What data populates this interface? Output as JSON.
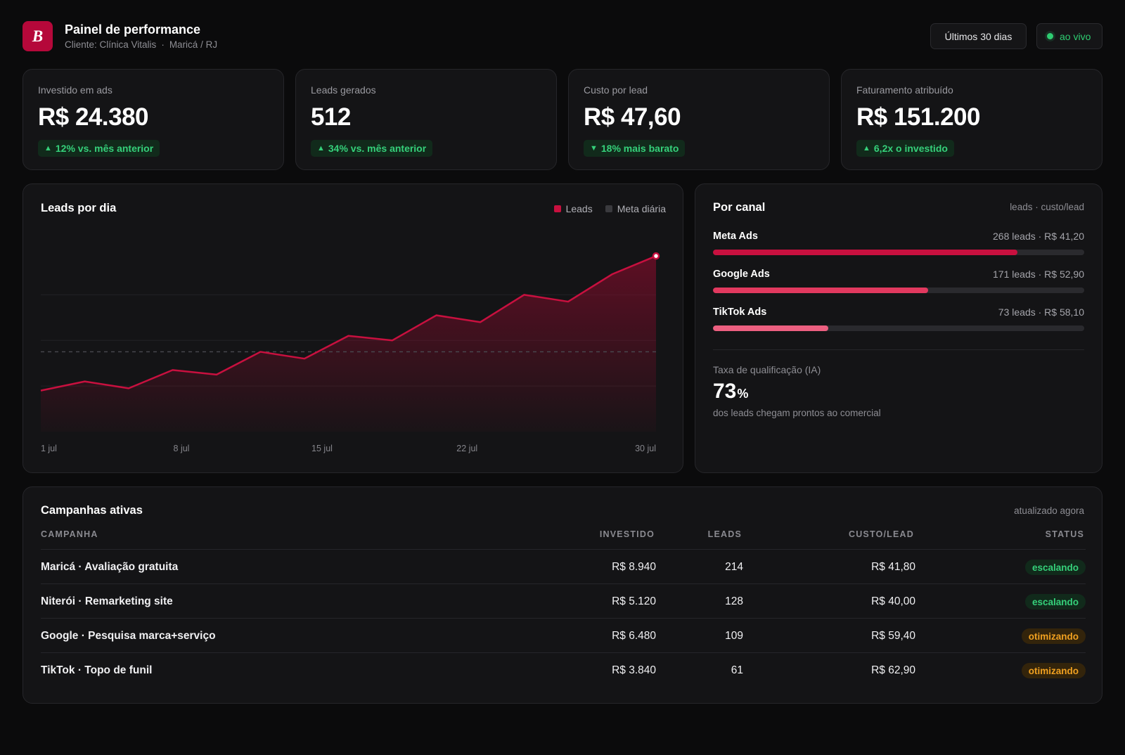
{
  "header": {
    "logo_letter": "B",
    "title": "Painel de performance",
    "client": "Cliente: Clínica Vitalis",
    "location": "Maricá / RJ",
    "range_label": "Últimos 30 dias",
    "live_label": "ao vivo"
  },
  "kpis": [
    {
      "label": "Investido em ads",
      "value": "R$ 24.380",
      "arrow": "▲",
      "badge": "12% vs. mês anterior"
    },
    {
      "label": "Leads gerados",
      "value": "512",
      "arrow": "▲",
      "badge": "34% vs. mês anterior"
    },
    {
      "label": "Custo por lead",
      "value": "R$ 47,60",
      "arrow": "▼",
      "badge": "18% mais barato"
    },
    {
      "label": "Faturamento atribuído",
      "value": "R$ 151.200",
      "arrow": "▲",
      "badge": "6,2x o investido"
    }
  ],
  "leads_chart": {
    "title": "Leads por dia",
    "legend_leads": "Leads",
    "legend_goal": "Meta diária"
  },
  "chart_data": {
    "type": "area",
    "x": [
      1,
      2,
      3,
      4,
      5,
      6,
      7,
      8,
      9,
      10,
      11,
      12,
      13,
      14,
      15
    ],
    "x_tick_labels": [
      "1 jul",
      "8 jul",
      "15 jul",
      "22 jul",
      "30 jul"
    ],
    "x_tick_positions": [
      1,
      4.2,
      7.4,
      10.7,
      15
    ],
    "series": [
      {
        "name": "Leads",
        "values": [
          9,
          11,
          9.5,
          13.5,
          12.5,
          17.5,
          16,
          21,
          20,
          25.5,
          24,
          30,
          28.5,
          34.5,
          38.5
        ],
        "color": "#c8103f"
      },
      {
        "name": "Meta diária",
        "values": [
          17.5,
          17.5,
          17.5,
          17.5,
          17.5,
          17.5,
          17.5,
          17.5,
          17.5,
          17.5,
          17.5,
          17.5,
          17.5,
          17.5,
          17.5
        ],
        "color": "#3a3a3e"
      }
    ],
    "ylim": [
      0,
      45
    ],
    "grid": true
  },
  "channels": {
    "title": "Por canal",
    "subtitle": "leads · custo/lead",
    "items": [
      {
        "name": "Meta Ads",
        "stat": "268 leads · R$ 41,20",
        "share": 0.82,
        "color": "#c8103f"
      },
      {
        "name": "Google Ads",
        "stat": "171 leads · R$ 52,90",
        "share": 0.58,
        "color": "#e2395f"
      },
      {
        "name": "TikTok Ads",
        "stat": "73 leads · R$ 58,10",
        "share": 0.31,
        "color": "#ec5f80"
      }
    ],
    "qualification_label": "Taxa de qualificação (IA)",
    "qualification_value": "73",
    "qualification_unit": "%",
    "qualification_desc": "dos leads chegam prontos ao comercial"
  },
  "campaigns": {
    "title": "Campanhas ativas",
    "updated": "atualizado agora",
    "headers": {
      "name": "CAMPANHA",
      "invested": "INVESTIDO",
      "leads": "LEADS",
      "cpl": "CUSTO/LEAD",
      "status": "STATUS"
    },
    "rows": [
      {
        "name": "Maricá · Avaliação gratuita",
        "invested": "R$ 8.940",
        "leads": "214",
        "cpl": "R$ 41,80",
        "status": "escalando",
        "kind": "scale"
      },
      {
        "name": "Niterói · Remarketing site",
        "invested": "R$ 5.120",
        "leads": "128",
        "cpl": "R$ 40,00",
        "status": "escalando",
        "kind": "scale"
      },
      {
        "name": "Google · Pesquisa marca+serviço",
        "invested": "R$ 6.480",
        "leads": "109",
        "cpl": "R$ 59,40",
        "status": "otimizando",
        "kind": "opt"
      },
      {
        "name": "TikTok · Topo de funil",
        "invested": "R$ 3.840",
        "leads": "61",
        "cpl": "R$ 62,90",
        "status": "otimizando",
        "kind": "opt"
      }
    ]
  }
}
